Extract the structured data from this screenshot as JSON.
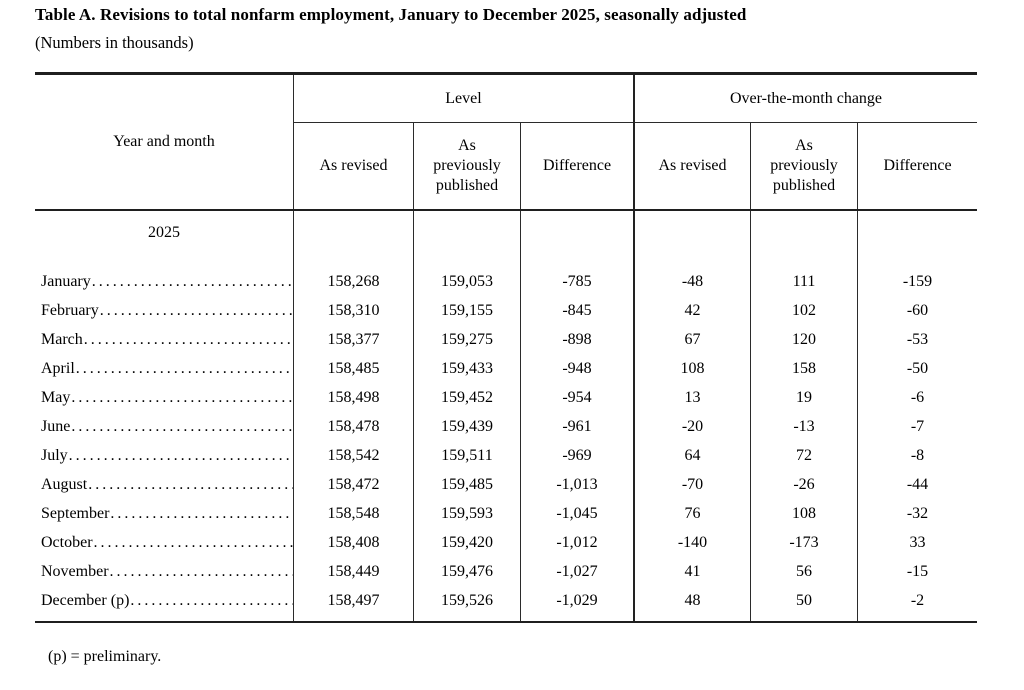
{
  "title": "Table A. Revisions to total nonfarm employment, January to December 2025, seasonally adjusted",
  "subtitle": "(Numbers in thousands)",
  "footnote": "(p) = preliminary.",
  "table": {
    "row_header": "Year and month",
    "group_headers": [
      "Level",
      "Over-the-month change"
    ],
    "sub_headers": [
      "As revised",
      "As\npreviously\npublished",
      "Difference",
      "As revised",
      "As\npreviously\npublished",
      "Difference"
    ],
    "year_label": "2025",
    "leader": "....................................................................",
    "rows": [
      {
        "label": "January",
        "values": [
          "158,268",
          "159,053",
          "-785",
          "-48",
          "111",
          "-159"
        ]
      },
      {
        "label": "February",
        "values": [
          "158,310",
          "159,155",
          "-845",
          "42",
          "102",
          "-60"
        ]
      },
      {
        "label": "March",
        "values": [
          "158,377",
          "159,275",
          "-898",
          "67",
          "120",
          "-53"
        ]
      },
      {
        "label": "April",
        "values": [
          "158,485",
          "159,433",
          "-948",
          "108",
          "158",
          "-50"
        ]
      },
      {
        "label": "May",
        "values": [
          "158,498",
          "159,452",
          "-954",
          "13",
          "19",
          "-6"
        ]
      },
      {
        "label": "June",
        "values": [
          "158,478",
          "159,439",
          "-961",
          "-20",
          "-13",
          "-7"
        ]
      },
      {
        "label": "July",
        "values": [
          "158,542",
          "159,511",
          "-969",
          "64",
          "72",
          "-8"
        ]
      },
      {
        "label": "August",
        "values": [
          "158,472",
          "159,485",
          "-1,013",
          "-70",
          "-26",
          "-44"
        ]
      },
      {
        "label": "September",
        "values": [
          "158,548",
          "159,593",
          "-1,045",
          "76",
          "108",
          "-32"
        ]
      },
      {
        "label": "October",
        "values": [
          "158,408",
          "159,420",
          "-1,012",
          "-140",
          "-173",
          "33"
        ]
      },
      {
        "label": "November",
        "values": [
          "158,449",
          "159,476",
          "-1,027",
          "41",
          "56",
          "-15"
        ]
      },
      {
        "label": "December (p)",
        "values": [
          "158,497",
          "159,526",
          "-1,029",
          "48",
          "50",
          "-2"
        ]
      }
    ]
  }
}
